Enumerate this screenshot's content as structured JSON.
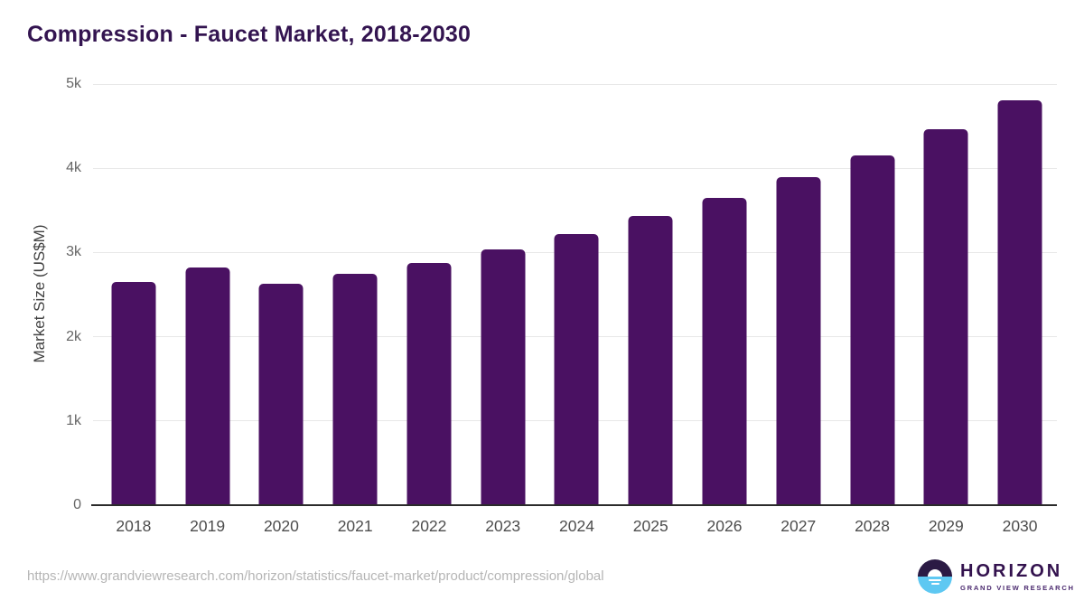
{
  "header": {
    "title": "Compression - Faucet Market, 2018-2030"
  },
  "chart_data": {
    "type": "bar",
    "title": "Compression - Faucet Market, 2018-2030",
    "categories": [
      "2018",
      "2019",
      "2020",
      "2021",
      "2022",
      "2023",
      "2024",
      "2025",
      "2026",
      "2027",
      "2028",
      "2029",
      "2030"
    ],
    "values": [
      2650,
      2820,
      2625,
      2750,
      2875,
      3040,
      3215,
      3430,
      3645,
      3900,
      4150,
      4460,
      4810
    ],
    "xlabel": "",
    "ylabel": "Market Size (US$M)",
    "ylim": [
      0,
      5000
    ],
    "yticks": [
      0,
      1000,
      2000,
      3000,
      4000,
      5000
    ],
    "ytick_labels": [
      "0",
      "1k",
      "2k",
      "3k",
      "4k",
      "5k"
    ],
    "grid": "horizontal",
    "legend": false,
    "bar_color": "#4A1162"
  },
  "footer": {
    "source_url": "https://www.grandviewresearch.com/horizon/statistics/faucet-market/product/compression/global",
    "logo": {
      "brand": "HORIZON",
      "tagline": "GRAND VIEW RESEARCH"
    }
  },
  "colors": {
    "title_text": "#331450",
    "bar": "#4A1162",
    "gridline": "#E8E8E8",
    "axis_line": "#2B2B2B",
    "ytick_label": "#666666",
    "xtick_label": "#4D4D4D",
    "url_text": "#B5B5B5",
    "logo_dark": "#2B1A44",
    "logo_blue": "#5EC8F2"
  }
}
